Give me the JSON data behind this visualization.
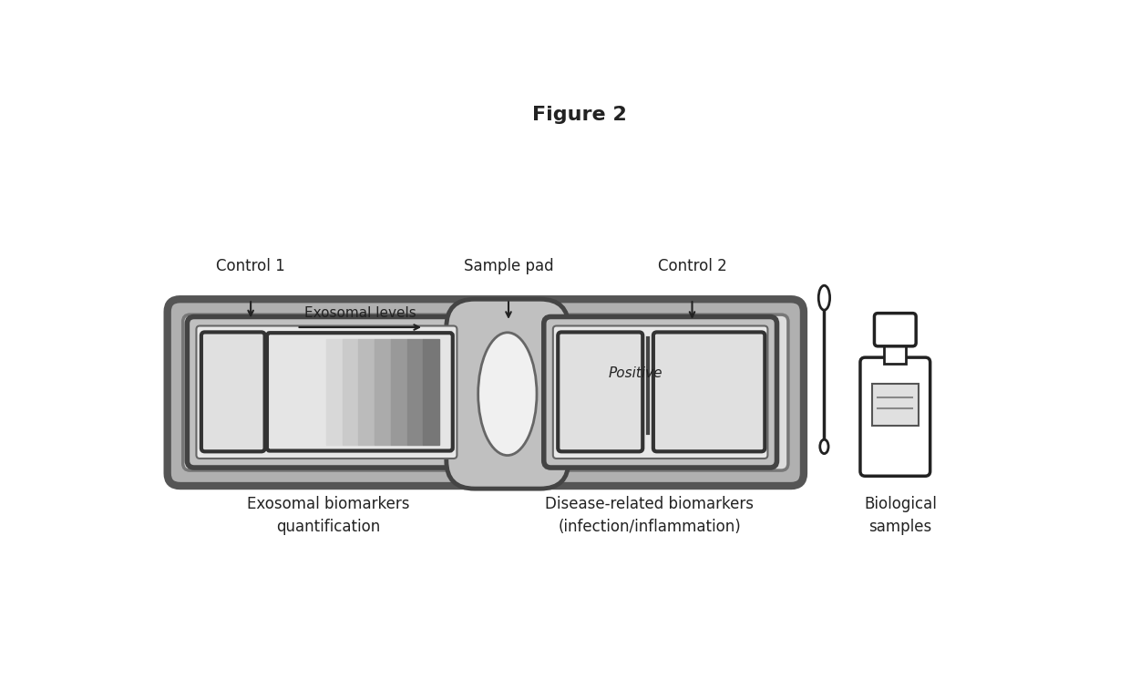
{
  "title": "Figure 2",
  "title_fontsize": 16,
  "title_fontweight": "bold",
  "bg_color": "#ffffff",
  "font_color": "#222222",
  "label_control1": "Control 1",
  "label_control2": "Control 2",
  "label_sample_pad": "Sample pad",
  "label_exosomal": "Exosomal levels",
  "label_positive": "Positive",
  "label_bottom_left": "Exosomal biomarkers\nquantification",
  "label_bottom_mid": "Disease-related biomarkers\n(infection/inflammation)",
  "label_bottom_right": "Biological\nsamples",
  "outer_edge": "#555555",
  "outer_face": "#b0b0b0",
  "inner_face": "#d0d0d0",
  "section_edge": "#444444",
  "section_face": "#c0c0c0",
  "box_face": "#e0e0e0",
  "box_edge": "#333333"
}
